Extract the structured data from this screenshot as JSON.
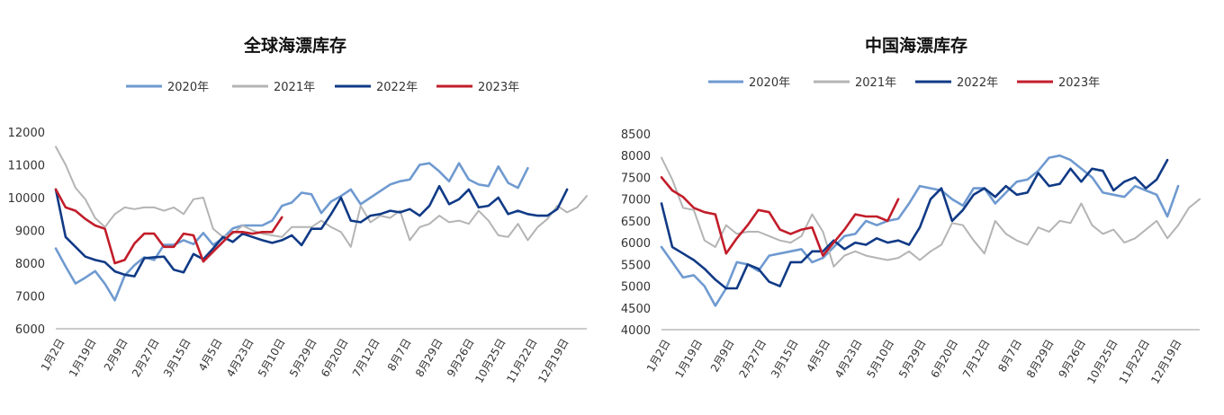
{
  "colors": {
    "2020": "#6f9ad0",
    "2021": "#b4b4b4",
    "2022": "#103a86",
    "2023": "#c21d2a"
  },
  "chart_data": [
    {
      "type": "line",
      "title": "全球海漂库存",
      "ylim": [
        6000,
        12000
      ],
      "yticks": [
        6000,
        7000,
        8000,
        9000,
        10000,
        11000,
        12000
      ],
      "xticks": [
        "1月2日",
        "1月19日",
        "2月9日",
        "2月27日",
        "3月15日",
        "4月5日",
        "4月23日",
        "5月10日",
        "5月29日",
        "6月20日",
        "7月12日",
        "8月7日",
        "8月29日",
        "9月26日",
        "10月25日",
        "11月22日",
        "12月19日"
      ],
      "series": [
        {
          "name": "2020年",
          "color_key": "2020",
          "values": [
            8450,
            7900,
            7380,
            7560,
            7760,
            7370,
            6870,
            7620,
            7940,
            8180,
            8100,
            8560,
            8560,
            8700,
            8580,
            8920,
            8560,
            8760,
            9060,
            9150,
            9150,
            9150,
            9300,
            9750,
            9850,
            10150,
            10100,
            9530,
            9880,
            10050,
            10250,
            9800,
            10000,
            10200,
            10400,
            10500,
            10550,
            11000,
            11050,
            10800,
            10500,
            11050,
            10550,
            10400,
            10350,
            10950,
            10450,
            10300,
            10900
          ]
        },
        {
          "name": "2021年",
          "color_key": "2021",
          "values": [
            11550,
            11000,
            10300,
            9950,
            9380,
            9100,
            9500,
            9700,
            9650,
            9700,
            9700,
            9600,
            9700,
            9500,
            9950,
            10000,
            9050,
            8800,
            8900,
            9150,
            9000,
            8900,
            8850,
            8800,
            9100,
            9100,
            9100,
            9300,
            9100,
            8950,
            8500,
            9750,
            9250,
            9450,
            9380,
            9600,
            8700,
            9100,
            9200,
            9450,
            9250,
            9300,
            9200,
            9600,
            9300,
            8850,
            8800,
            9200,
            8700,
            9100,
            9350,
            9750,
            9550,
            9700,
            10050
          ]
        },
        {
          "name": "2022年",
          "color_key": "2022",
          "values": [
            10250,
            8800,
            8500,
            8200,
            8100,
            8030,
            7750,
            7650,
            7600,
            8150,
            8180,
            8200,
            7800,
            7720,
            8280,
            8120,
            8450,
            8800,
            8650,
            8900,
            8800,
            8700,
            8620,
            8700,
            8850,
            8550,
            9050,
            9050,
            9500,
            10000,
            9300,
            9250,
            9450,
            9500,
            9600,
            9550,
            9650,
            9450,
            9750,
            10350,
            9800,
            9950,
            10250,
            9700,
            9750,
            10000,
            9500,
            9600,
            9500,
            9450,
            9450,
            9650,
            10250
          ]
        },
        {
          "name": "2023年",
          "color_key": "2023",
          "values": [
            10250,
            9700,
            9600,
            9350,
            9150,
            9050,
            8000,
            8100,
            8600,
            8900,
            8900,
            8500,
            8500,
            8900,
            8850,
            8050,
            8350,
            8650,
            8950,
            8950,
            8900,
            8950,
            8950,
            9400
          ]
        }
      ]
    },
    {
      "type": "line",
      "title": "中国海漂库存",
      "ylim": [
        4000,
        8500
      ],
      "yticks": [
        4000,
        4500,
        5000,
        5500,
        6000,
        6500,
        7000,
        7500,
        8000,
        8500
      ],
      "xticks": [
        "1月2日",
        "1月19日",
        "2月9日",
        "2月27日",
        "3月15日",
        "4月5日",
        "4月23日",
        "5月10日",
        "5月29日",
        "6月20日",
        "7月12日",
        "8月7日",
        "8月29日",
        "9月26日",
        "10月25日",
        "11月22日",
        "12月19日"
      ],
      "series": [
        {
          "name": "2020年",
          "color_key": "2020",
          "values": [
            5900,
            5550,
            5200,
            5250,
            5000,
            4550,
            4950,
            5550,
            5500,
            5350,
            5700,
            5750,
            5800,
            5850,
            5550,
            5650,
            5900,
            6150,
            6200,
            6500,
            6400,
            6500,
            6550,
            6900,
            7300,
            7250,
            7200,
            7000,
            6850,
            7250,
            7250,
            6900,
            7150,
            7400,
            7450,
            7650,
            7950,
            8000,
            7900,
            7700,
            7500,
            7150,
            7100,
            7050,
            7300,
            7200,
            7100,
            6600,
            7300
          ]
        },
        {
          "name": "2021年",
          "color_key": "2021",
          "values": [
            7950,
            7450,
            6800,
            6750,
            6050,
            5900,
            6400,
            6200,
            6250,
            6250,
            6150,
            6050,
            6000,
            6150,
            6650,
            6250,
            5450,
            5700,
            5800,
            5700,
            5650,
            5600,
            5650,
            5800,
            5600,
            5800,
            5950,
            6450,
            6400,
            6050,
            5750,
            6500,
            6200,
            6050,
            5950,
            6350,
            6250,
            6500,
            6450,
            6900,
            6400,
            6200,
            6300,
            6000,
            6100,
            6300,
            6500,
            6100,
            6400,
            6800,
            7000
          ]
        },
        {
          "name": "2022年",
          "color_key": "2022",
          "values": [
            6900,
            5900,
            5750,
            5600,
            5400,
            5150,
            4950,
            4950,
            5500,
            5400,
            5100,
            5000,
            5550,
            5550,
            5800,
            5800,
            6050,
            5850,
            6000,
            5950,
            6100,
            6000,
            6050,
            5950,
            6350,
            7000,
            7250,
            6500,
            6750,
            7100,
            7250,
            7050,
            7300,
            7100,
            7150,
            7600,
            7300,
            7350,
            7700,
            7400,
            7700,
            7650,
            7200,
            7400,
            7500,
            7250,
            7450,
            7900
          ]
        },
        {
          "name": "2023年",
          "color_key": "2023",
          "values": [
            7500,
            7200,
            7050,
            6800,
            6700,
            6650,
            5750,
            6100,
            6400,
            6750,
            6700,
            6300,
            6200,
            6300,
            6350,
            5700,
            6000,
            6300,
            6650,
            6600,
            6600,
            6500,
            7000
          ]
        }
      ]
    }
  ]
}
